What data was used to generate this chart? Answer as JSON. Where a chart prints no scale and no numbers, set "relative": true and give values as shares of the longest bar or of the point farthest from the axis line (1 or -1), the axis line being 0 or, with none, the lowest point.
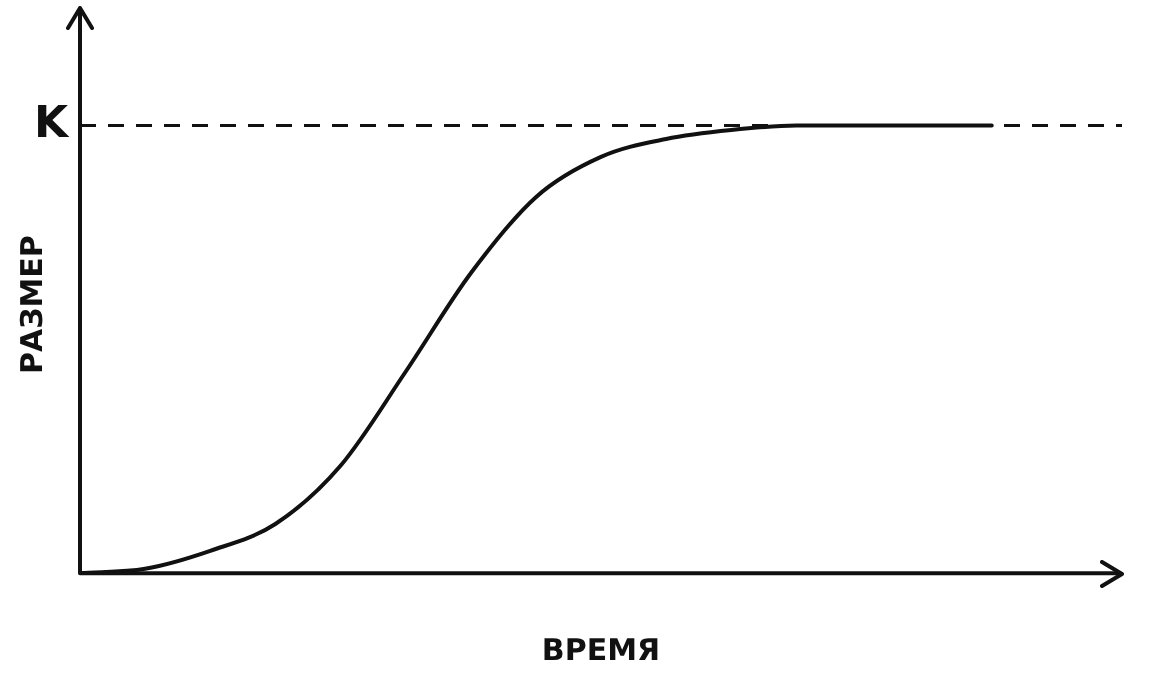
{
  "chart_data": {
    "type": "line",
    "relative": true,
    "xlabel": "ВРЕМЯ",
    "ylabel": "РАЗМЕР",
    "categories": [
      null,
      null,
      null,
      null,
      null,
      null,
      null,
      null,
      null,
      null,
      null,
      null,
      null,
      null,
      null,
      null,
      null
    ],
    "series": [
      {
        "color": "#111111",
        "values": [
          0,
          0.01,
          0.05,
          0.11,
          0.24,
          0.45,
          0.67,
          0.84,
          0.93,
          0.97,
          0.99,
          1,
          1,
          1,
          1,
          null,
          null
        ]
      }
    ],
    "ref_lines": [
      {
        "axis": "y",
        "value": 1,
        "label": "K",
        "line_style": "dashed",
        "color": "#111111"
      }
    ],
    "marker": "none",
    "line_style": "solid",
    "grid": false,
    "legend": false
  }
}
